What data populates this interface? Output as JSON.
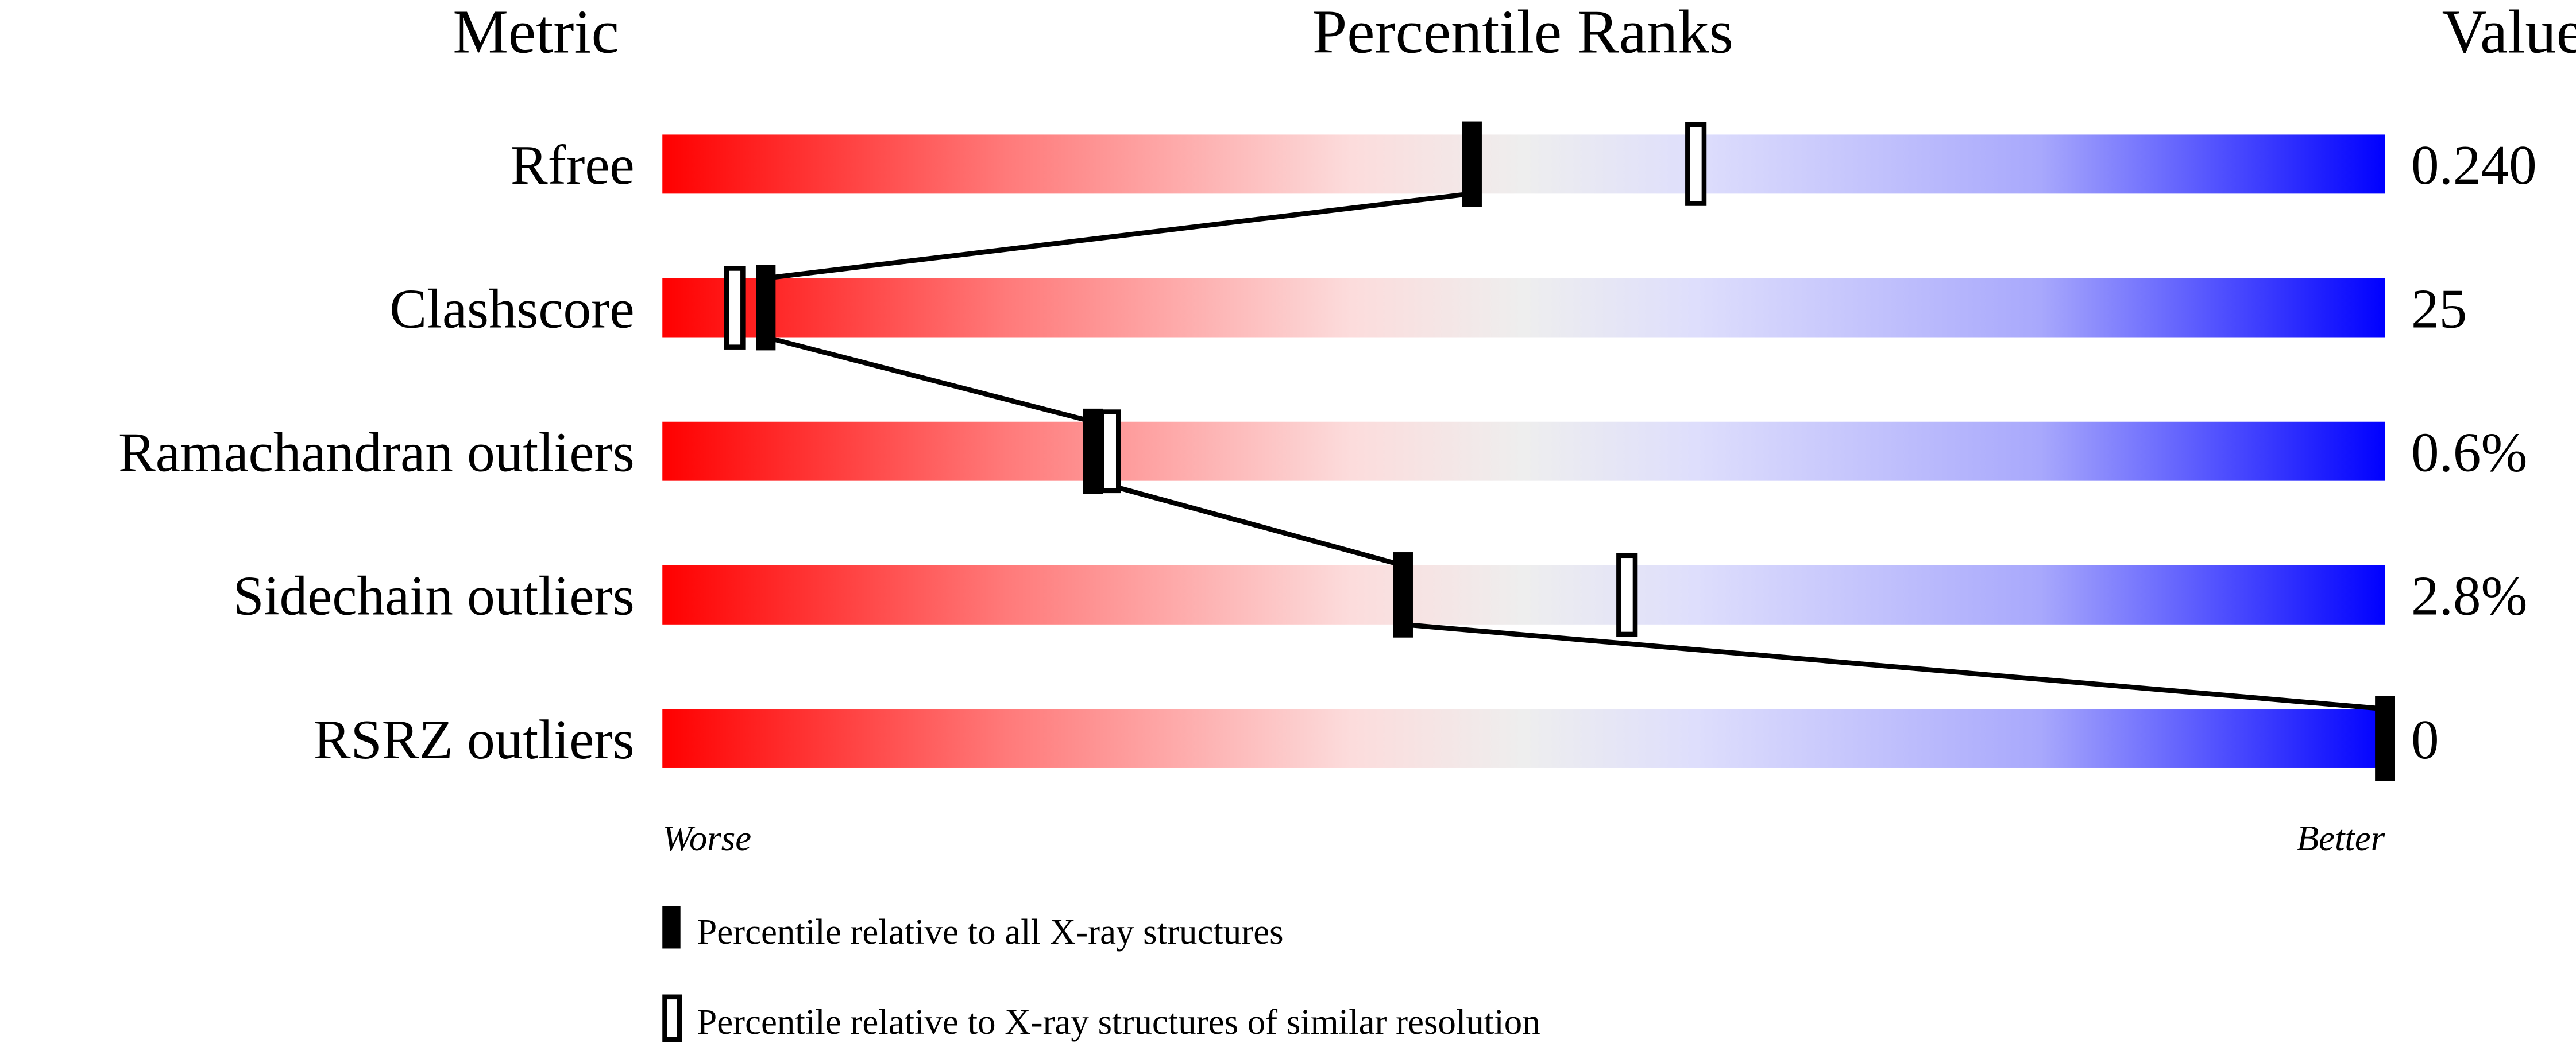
{
  "chart_data": {
    "type": "percentile-slider",
    "headers": {
      "metric": "Metric",
      "ranks": "Percentile Ranks",
      "value": "Value"
    },
    "xlim": [
      0,
      100
    ],
    "axis_labels": {
      "left": "Worse",
      "right": "Better"
    },
    "gradient_colors": [
      "#ff0000",
      "#fcdcdc",
      "#eeeeee",
      "#dcdcfc",
      "#0000ff"
    ],
    "metrics": [
      {
        "name": "Rfree",
        "value": "0.240",
        "percentile_all": 47,
        "percentile_similar": 60
      },
      {
        "name": "Clashscore",
        "value": "25",
        "percentile_all": 6,
        "percentile_similar": 4
      },
      {
        "name": "Ramachandran outliers",
        "value": "0.6%",
        "percentile_all": 25,
        "percentile_similar": 26
      },
      {
        "name": "Sidechain outliers",
        "value": "2.8%",
        "percentile_all": 43,
        "percentile_similar": 56
      },
      {
        "name": "RSRZ outliers",
        "value": "0",
        "percentile_all": 100,
        "percentile_similar": null
      }
    ],
    "legend": [
      {
        "marker": "filled",
        "label": "Percentile relative to all X-ray structures"
      },
      {
        "marker": "open",
        "label": "Percentile relative to X-ray structures of similar resolution"
      }
    ]
  }
}
